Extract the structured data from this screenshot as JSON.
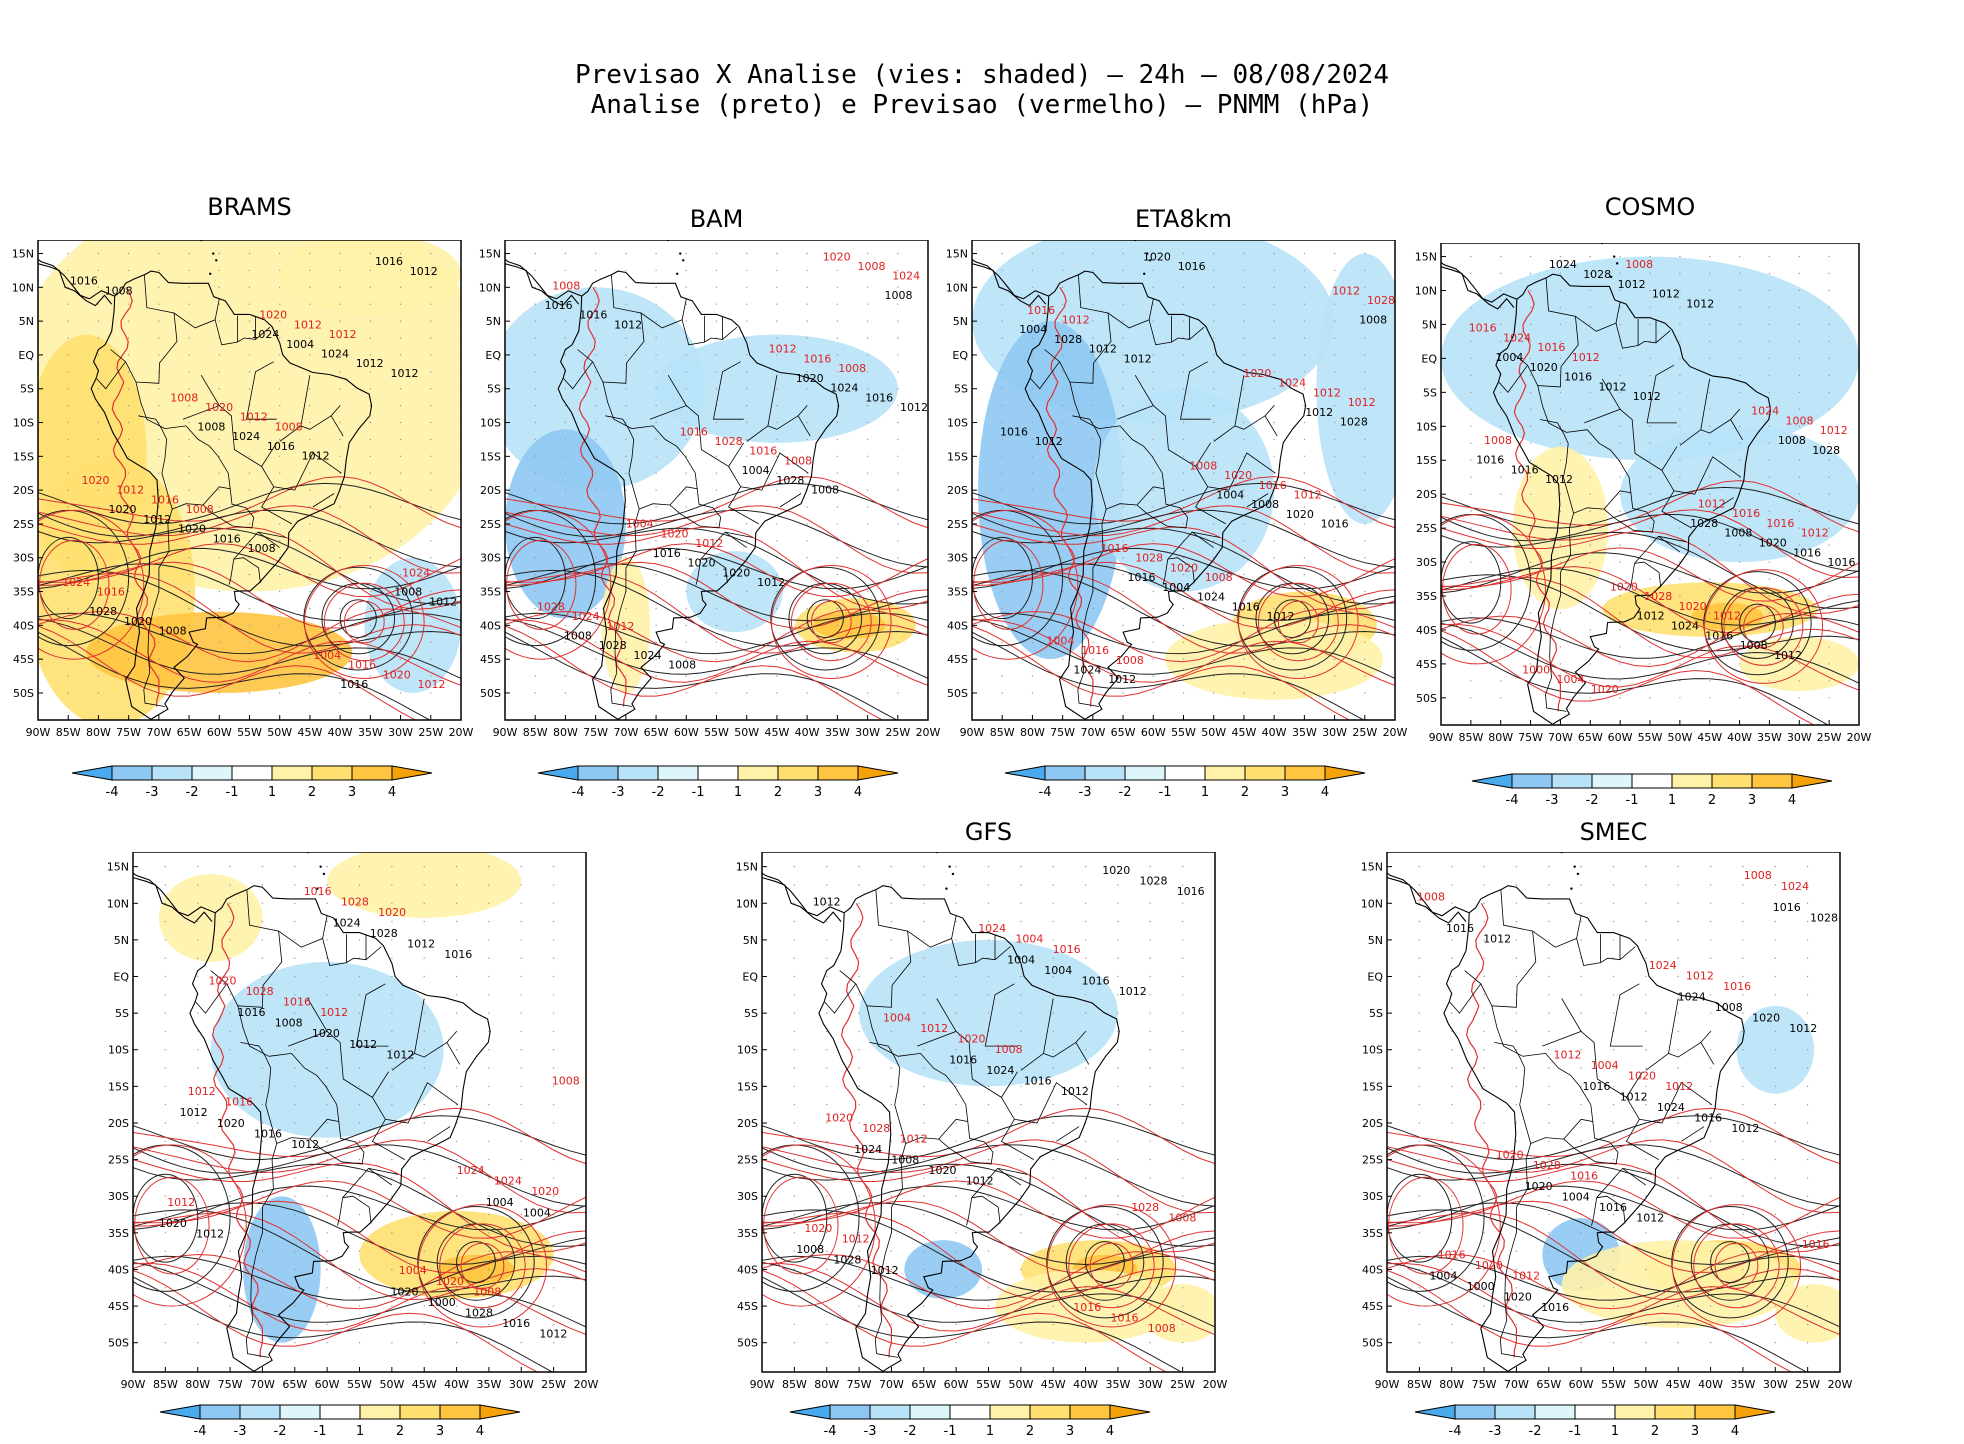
{
  "title": {
    "line1": "Previsao X Analise (vies: shaded) – 24h – 08/08/2024",
    "line2": "Analise (preto) e Previsao (vermelho) – PNMM (hPa)"
  },
  "lat_labels": [
    "15N",
    "10N",
    "5N",
    "EQ",
    "5S",
    "10S",
    "15S",
    "20S",
    "25S",
    "30S",
    "35S",
    "40S",
    "45S",
    "50S"
  ],
  "lon_labels": [
    "90W",
    "85W",
    "80W",
    "75W",
    "70W",
    "65W",
    "60W",
    "55W",
    "50W",
    "45W",
    "40W",
    "35W",
    "30W",
    "25W",
    "20W"
  ],
  "colorbar": {
    "labels": [
      "-4",
      "-3",
      "-2",
      "-1",
      "1",
      "2",
      "3",
      "4"
    ],
    "colors": [
      "#4aaaee",
      "#8ec8f2",
      "#b8e2f8",
      "#dcf6fc",
      "#ffffff",
      "#fff2a8",
      "#ffe070",
      "#ffc440",
      "#f5a20a"
    ]
  },
  "panels": [
    {
      "name": "BRAMS",
      "isobars_black": [
        "1008",
        "1008",
        "1012",
        "1008",
        "1012",
        "1016",
        "1016",
        "1012",
        "1020",
        "1016",
        "1012",
        "1020",
        "1024",
        "1028",
        "1024",
        "1016",
        "1012",
        "1004",
        "1012",
        "1008",
        "1016",
        "1020",
        "1024",
        "1008"
      ],
      "isobars_red": [
        "1008",
        "1012",
        "1008",
        "1012",
        "1016",
        "1012",
        "1020",
        "1016",
        "1012",
        "1024",
        "1020",
        "1016",
        "1012",
        "1020",
        "1024",
        "1008",
        "1004",
        "1020"
      ]
    },
    {
      "name": "BAM",
      "isobars_black": [
        "1012",
        "1012",
        "1012",
        "1008",
        "1008",
        "1016",
        "1020",
        "1016",
        "1024",
        "1028",
        "1016",
        "1020",
        "1024",
        "1028",
        "1004",
        "1008",
        "1016",
        "1020",
        "1008"
      ],
      "isobars_red": [
        "1008",
        "1008",
        "1012",
        "1008",
        "1012",
        "1016",
        "1024",
        "1020",
        "1016",
        "1024",
        "1028",
        "1008",
        "1004",
        "1012",
        "1028",
        "1016",
        "1020"
      ]
    },
    {
      "name": "ETA8km",
      "isobars_black": [
        "1012",
        "1012",
        "1012",
        "1016",
        "1016",
        "1012",
        "1016",
        "1016",
        "1020",
        "1020",
        "1028",
        "1024",
        "1028",
        "1012",
        "1008",
        "1004",
        "1004",
        "1012",
        "1024",
        "1004",
        "1008",
        "1016"
      ],
      "isobars_red": [
        "1012",
        "1012",
        "1008",
        "1012",
        "1008",
        "1016",
        "1016",
        "1020",
        "1012",
        "1016",
        "1020",
        "1028",
        "1028",
        "1024",
        "1004",
        "1008",
        "1012",
        "1016",
        "1020"
      ]
    },
    {
      "name": "COSMO",
      "isobars_black": [
        "1012",
        "1012",
        "1012",
        "1012",
        "1016",
        "1012",
        "1008",
        "1016",
        "1012",
        "1016",
        "1016",
        "1016",
        "1016",
        "1012",
        "1020",
        "1020",
        "1024",
        "1028",
        "1028",
        "1008",
        "1004",
        "1012",
        "1008",
        "1024",
        "1028"
      ],
      "isobars_red": [
        "1012",
        "1012",
        "1012",
        "1008",
        "1008",
        "1016",
        "1016",
        "1020",
        "1012",
        "1020",
        "1016",
        "1024",
        "1028",
        "1008",
        "1004",
        "1012",
        "1016",
        "1020",
        "1024",
        "1000"
      ]
    },
    {
      "name": "",
      "isobars_black": [
        "1012",
        "1012",
        "1012",
        "1016",
        "1012",
        "1012",
        "1016",
        "1016",
        "1012",
        "1020",
        "1020",
        "1028",
        "1020",
        "1028",
        "1004",
        "1008",
        "1000",
        "1012",
        "1024",
        "1004",
        "1016",
        "1020"
      ],
      "isobars_red": [
        "1012",
        "1012",
        "1008",
        "1016",
        "1020",
        "1020",
        "1016",
        "1020",
        "1012",
        "1028",
        "1024",
        "1028",
        "1004",
        "1008",
        "1016",
        "1024",
        "1020"
      ]
    },
    {
      "name": "GFS",
      "isobars_black": [
        "1012",
        "1012",
        "1012",
        "1012",
        "1012",
        "1016",
        "1016",
        "1020",
        "1016",
        "1028",
        "1024",
        "1028",
        "1008",
        "1004",
        "1008",
        "1016",
        "1020",
        "1024",
        "1004"
      ],
      "isobars_red": [
        "1012",
        "1008",
        "1008",
        "1012",
        "1016",
        "1020",
        "1020",
        "1016",
        "1028",
        "1004",
        "1008",
        "1012",
        "1016",
        "1020",
        "1024",
        "1028",
        "1004"
      ]
    },
    {
      "name": "SMEC",
      "isobars_black": [
        "1012",
        "1012",
        "1012",
        "1012",
        "1016",
        "1016",
        "1016",
        "1016",
        "1020",
        "1020",
        "1024",
        "1028",
        "1004",
        "1008",
        "1000",
        "1012",
        "1016",
        "1020",
        "1024",
        "1004",
        "1016"
      ],
      "isobars_red": [
        "1012",
        "1012",
        "1008",
        "1016",
        "1016",
        "1020",
        "1020",
        "1024",
        "1028",
        "1012",
        "1016",
        "1004",
        "1008",
        "1020",
        "1024",
        "1016",
        "1012"
      ]
    }
  ]
}
